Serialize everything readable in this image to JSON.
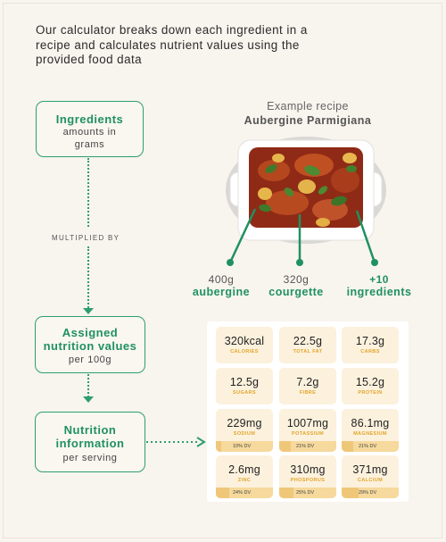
{
  "intro_text": "Our calculator breaks down each ingredient in a recipe and calculates nutrient values using the provided food data",
  "flow": {
    "ingredients": {
      "title": "Ingredients",
      "subtitle": "amounts in grams"
    },
    "multiplied_by": "MULTIPLIED BY",
    "assigned": {
      "title": "Assigned nutrition values",
      "subtitle": "per 100g"
    },
    "info": {
      "title": "Nutrition information",
      "subtitle": "per serving"
    }
  },
  "recipe": {
    "caption": "Example recipe",
    "name": "Aubergine Parmigiana",
    "callouts": [
      {
        "weight": "400g",
        "name": "aubergine"
      },
      {
        "weight": "320g",
        "name": "courgette"
      },
      {
        "weight": "+10",
        "name": "ingredients"
      }
    ]
  },
  "nutrients": [
    {
      "value": "320kcal",
      "label": "CALORIES"
    },
    {
      "value": "22.5g",
      "label": "TOTAL FAT"
    },
    {
      "value": "17.3g",
      "label": "CARBS"
    },
    {
      "value": "12.5g",
      "label": "SUGARS"
    },
    {
      "value": "7.2g",
      "label": "FIBRE"
    },
    {
      "value": "15.2g",
      "label": "PROTEIN"
    },
    {
      "value": "229mg",
      "label": "SODIUM",
      "dv": "10% DV",
      "dv_fraction": 0.1
    },
    {
      "value": "1007mg",
      "label": "POTASSIUM",
      "dv": "21% DV",
      "dv_fraction": 0.21
    },
    {
      "value": "86.1mg",
      "label": "MAGNESIUM",
      "dv": "21% DV",
      "dv_fraction": 0.21
    },
    {
      "value": "2.6mg",
      "label": "ZINC",
      "dv": "24% DV",
      "dv_fraction": 0.24
    },
    {
      "value": "310mg",
      "label": "PHOSPORUS",
      "dv": "25% DV",
      "dv_fraction": 0.25
    },
    {
      "value": "371mg",
      "label": "CALCIUM",
      "dv": "29% DV",
      "dv_fraction": 0.29
    }
  ],
  "colors": {
    "accent": "#1f9161",
    "cell_bg": "#fcf1dd",
    "dv_bar": "#f6d99c",
    "label": "#e3a52a"
  }
}
